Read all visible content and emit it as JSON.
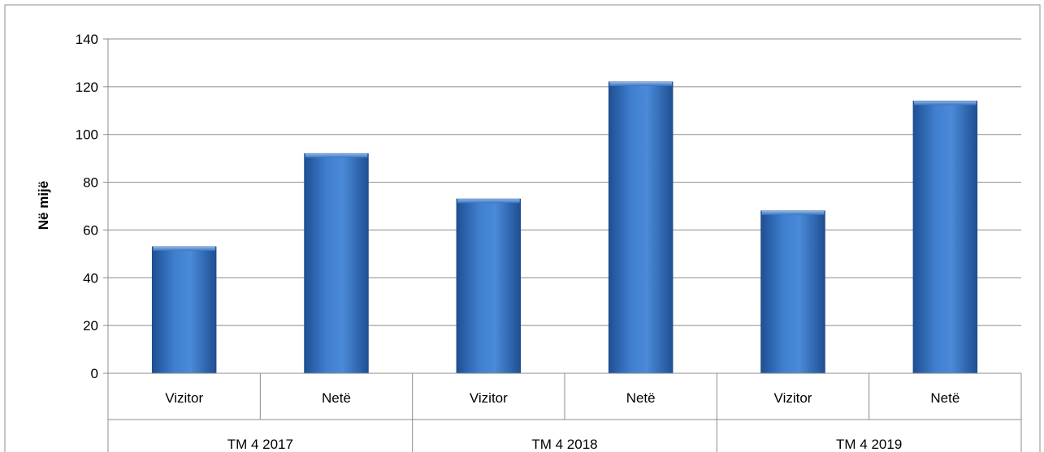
{
  "chart_data": {
    "type": "bar",
    "title": "",
    "xlabel": "",
    "ylabel": "Në mijë",
    "ylim": [
      0,
      140
    ],
    "yticks": [
      0,
      20,
      40,
      60,
      80,
      100,
      120,
      140
    ],
    "grid": true,
    "legend": "none",
    "bar_color": "#3a75c4",
    "groups": [
      {
        "label": "TM 4 2017",
        "categories": [
          {
            "label": "Vizitor",
            "value": 53
          },
          {
            "label": "Netë",
            "value": 92
          }
        ]
      },
      {
        "label": "TM 4 2018",
        "categories": [
          {
            "label": "Vizitor",
            "value": 73
          },
          {
            "label": "Netë",
            "value": 122
          }
        ]
      },
      {
        "label": "TM 4 2019",
        "categories": [
          {
            "label": "Vizitor",
            "value": 68
          },
          {
            "label": "Netë",
            "value": 114
          }
        ]
      }
    ]
  }
}
